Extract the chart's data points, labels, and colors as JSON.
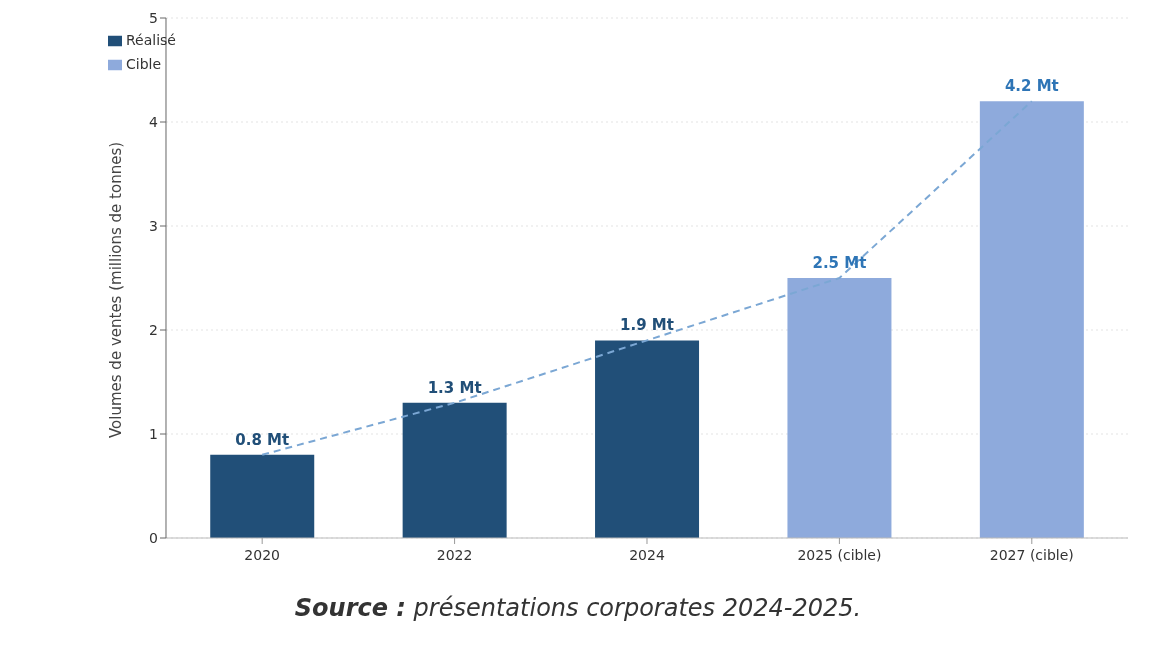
{
  "chart_data": {
    "type": "bar",
    "ylabel": "Volumes de ventes (millions de tonnes)",
    "categories": [
      "2020",
      "2022",
      "2024",
      "2025 (cible)",
      "2027 (cible)"
    ],
    "series": [
      {
        "name": "Réalisé",
        "color": "#214f78",
        "values": [
          0.8,
          1.3,
          1.9,
          null,
          null
        ],
        "value_labels": [
          "0.8 Mt",
          "1.3 Mt",
          "1.9 Mt",
          null,
          null
        ]
      },
      {
        "name": "Cible",
        "color": "#8eaadc",
        "values": [
          null,
          null,
          null,
          2.5,
          4.2
        ],
        "value_labels": [
          null,
          null,
          null,
          "2.5 Mt",
          "4.2 Mt"
        ]
      },
      {
        "type": "line",
        "color": "#7ba7d4",
        "line_style": "dashed",
        "values": [
          0.8,
          1.3,
          1.9,
          2.5,
          4.2
        ]
      }
    ],
    "stacked": true,
    "ylim": [
      0,
      5
    ],
    "yticks": [
      0,
      1,
      2,
      3,
      4,
      5
    ],
    "grid": "y",
    "legend": "top left",
    "marker": "none",
    "annotations": [
      "Source : présentations corporates 2024-2025."
    ]
  }
}
